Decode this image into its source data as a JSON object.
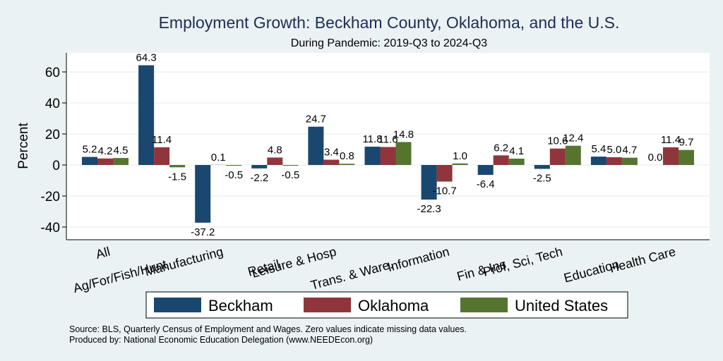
{
  "chart_data": {
    "type": "bar",
    "title": "Employment Growth: Beckham County, Oklahoma, and the U.S.",
    "subtitle": "During Pandemic: 2019-Q3 to 2024-Q3",
    "xlabel": "",
    "ylabel": "Percent",
    "ylim": [
      -48,
      72
    ],
    "yticks": [
      60,
      40,
      20,
      0,
      -20,
      -40
    ],
    "grid": true,
    "categories": [
      "All",
      "Ag/For/Fish/Hunt",
      "Manufacturing",
      "Retail",
      "Leisure & Hosp",
      "Trans. & Ware.",
      "Information",
      "Fin & Ins",
      "Prof, Sci, Tech",
      "Education",
      "Health Care"
    ],
    "series": [
      {
        "name": "Beckham",
        "color": "#1a476f",
        "values": [
          5.2,
          64.3,
          -37.2,
          -2.2,
          24.7,
          11.8,
          -22.3,
          -6.4,
          -2.5,
          5.4,
          0.0
        ]
      },
      {
        "name": "Oklahoma",
        "color": "#90353b",
        "values": [
          4.2,
          11.4,
          0.1,
          4.8,
          3.4,
          11.6,
          -10.7,
          6.2,
          10.6,
          5.0,
          11.4
        ]
      },
      {
        "name": "United States",
        "color": "#55752f",
        "values": [
          4.5,
          -1.5,
          -0.5,
          -0.5,
          0.8,
          14.8,
          1.0,
          4.1,
          12.4,
          4.7,
          9.7
        ]
      }
    ],
    "data_labels": [
      [
        "5.2",
        "64.3",
        "-37.2",
        "-2.2",
        "24.7",
        "11.8",
        "-22.3",
        "-6.4",
        "-2.5",
        "5.4",
        "0.0"
      ],
      [
        "4.2",
        "11.4",
        "0.1",
        "4.8",
        "3.4",
        "11.6",
        "-10.7",
        "6.2",
        "10.6",
        "5.0",
        "11.4"
      ],
      [
        "4.5",
        "-1.5",
        "-0.5",
        "-0.5",
        "0.8",
        "14.8",
        "1.0",
        "4.1",
        "12.4",
        "4.7",
        "9.7"
      ]
    ],
    "legend": {
      "placement": "bottom",
      "entries": [
        "Beckham",
        "Oklahoma",
        "United States"
      ]
    },
    "notes": [
      "Source: BLS, Quarterly Census of Employment and Wages. Zero values indicate missing data values.",
      "Produced by: National Economic Education Delegation (www.NEEDEcon.org)"
    ]
  }
}
